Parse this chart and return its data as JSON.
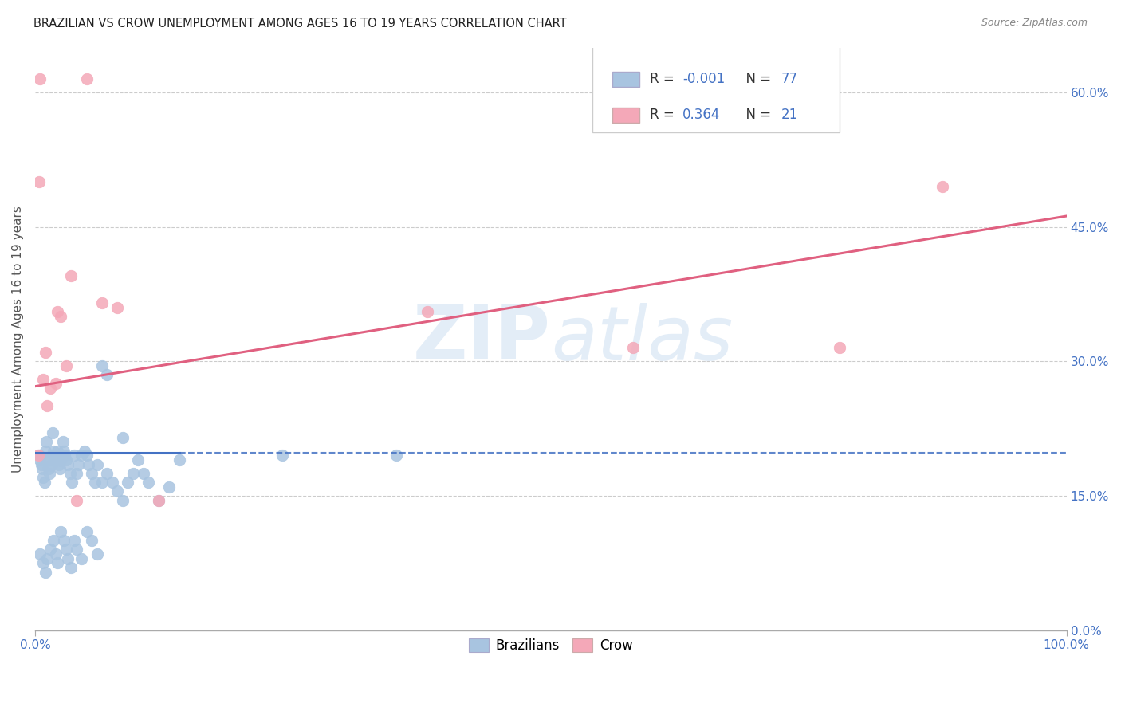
{
  "title": "BRAZILIAN VS CROW UNEMPLOYMENT AMONG AGES 16 TO 19 YEARS CORRELATION CHART",
  "source": "Source: ZipAtlas.com",
  "ylabel": "Unemployment Among Ages 16 to 19 years",
  "xlim": [
    0,
    1.0
  ],
  "ylim": [
    0,
    0.65
  ],
  "yticks": [
    0.0,
    0.15,
    0.3,
    0.45,
    0.6
  ],
  "ytick_labels": [
    "0.0%",
    "15.0%",
    "30.0%",
    "45.0%",
    "60.0%"
  ],
  "blue_R": "-0.001",
  "blue_N": "77",
  "pink_R": "0.364",
  "pink_N": "21",
  "blue_color": "#A8C4E0",
  "pink_color": "#F4A8B8",
  "blue_line_color": "#4472C4",
  "pink_line_color": "#E06080",
  "watermark_zip": "ZIP",
  "watermark_atlas": "atlas",
  "blue_trend_y_val": 0.198,
  "blue_trend_solid_end": 0.14,
  "pink_trend_y0": 0.272,
  "pink_trend_y1": 0.462,
  "blue_scatter_x": [
    0.004,
    0.005,
    0.006,
    0.007,
    0.008,
    0.009,
    0.01,
    0.011,
    0.012,
    0.013,
    0.014,
    0.015,
    0.016,
    0.017,
    0.018,
    0.019,
    0.02,
    0.021,
    0.022,
    0.023,
    0.024,
    0.025,
    0.026,
    0.027,
    0.028,
    0.029,
    0.03,
    0.032,
    0.034,
    0.036,
    0.038,
    0.04,
    0.042,
    0.045,
    0.048,
    0.05,
    0.052,
    0.055,
    0.058,
    0.06,
    0.065,
    0.07,
    0.075,
    0.08,
    0.085,
    0.09,
    0.095,
    0.1,
    0.105,
    0.11,
    0.12,
    0.13,
    0.14,
    0.005,
    0.008,
    0.01,
    0.012,
    0.015,
    0.018,
    0.02,
    0.022,
    0.025,
    0.028,
    0.03,
    0.032,
    0.035,
    0.038,
    0.04,
    0.045,
    0.05,
    0.055,
    0.06,
    0.065,
    0.07,
    0.085,
    0.24,
    0.35
  ],
  "blue_scatter_y": [
    0.195,
    0.19,
    0.185,
    0.18,
    0.17,
    0.165,
    0.2,
    0.21,
    0.19,
    0.18,
    0.175,
    0.19,
    0.185,
    0.22,
    0.2,
    0.195,
    0.19,
    0.195,
    0.2,
    0.185,
    0.18,
    0.19,
    0.195,
    0.21,
    0.2,
    0.195,
    0.19,
    0.185,
    0.175,
    0.165,
    0.195,
    0.175,
    0.185,
    0.195,
    0.2,
    0.195,
    0.185,
    0.175,
    0.165,
    0.185,
    0.165,
    0.175,
    0.165,
    0.155,
    0.145,
    0.165,
    0.175,
    0.19,
    0.175,
    0.165,
    0.145,
    0.16,
    0.19,
    0.085,
    0.075,
    0.065,
    0.08,
    0.09,
    0.1,
    0.085,
    0.075,
    0.11,
    0.1,
    0.09,
    0.08,
    0.07,
    0.1,
    0.09,
    0.08,
    0.11,
    0.1,
    0.085,
    0.295,
    0.285,
    0.215,
    0.195,
    0.195
  ],
  "pink_scatter_x": [
    0.003,
    0.004,
    0.005,
    0.008,
    0.01,
    0.012,
    0.015,
    0.02,
    0.022,
    0.025,
    0.03,
    0.035,
    0.04,
    0.05,
    0.065,
    0.08,
    0.12,
    0.38,
    0.58,
    0.78,
    0.88
  ],
  "pink_scatter_y": [
    0.195,
    0.5,
    0.615,
    0.28,
    0.31,
    0.25,
    0.27,
    0.275,
    0.355,
    0.35,
    0.295,
    0.395,
    0.145,
    0.615,
    0.365,
    0.36,
    0.145,
    0.355,
    0.315,
    0.315,
    0.495
  ]
}
